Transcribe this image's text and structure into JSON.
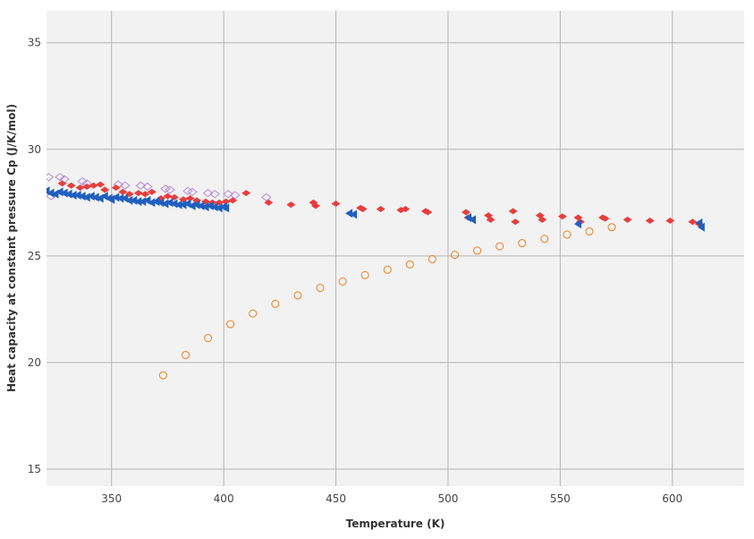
{
  "chart_data": {
    "type": "scatter",
    "title": "",
    "xlabel": "Temperature (K)",
    "ylabel": "Heat capacity at constant pressure Cp (J/K/mol)",
    "xlim": [
      321,
      632
    ],
    "ylim": [
      14.2,
      36.5
    ],
    "xticks": [
      350,
      400,
      450,
      500,
      550,
      600
    ],
    "yticks": [
      15,
      20,
      25,
      30,
      35
    ],
    "grid": true,
    "legend": "none",
    "colors": {
      "plot_background": "#f2f2f2",
      "grid": "#b4b4b4",
      "series_red": "#e83d3d",
      "series_blue": "#1f5fbf",
      "series_purple": "#b98ad8",
      "series_orange": "#ee7d21"
    },
    "series": [
      {
        "marker": "open-diamond",
        "color": "#b98ad8",
        "x": [
          322,
          323,
          327,
          329,
          337,
          339,
          353,
          356,
          363,
          366,
          374,
          376,
          384,
          386,
          393,
          396,
          402,
          405,
          419
        ],
        "y": [
          28.7,
          27.8,
          28.7,
          28.6,
          28.5,
          28.4,
          28.35,
          28.3,
          28.3,
          28.25,
          28.15,
          28.1,
          28.05,
          28.0,
          27.95,
          27.9,
          27.9,
          27.85,
          27.75
        ]
      },
      {
        "marker": "filled-diamond",
        "color": "#e83d3d",
        "x": [
          328,
          332,
          336,
          339,
          342,
          345,
          347,
          352,
          355,
          358,
          362,
          365,
          368,
          372,
          375,
          378,
          382,
          385,
          388,
          392,
          395,
          398,
          401,
          404,
          410,
          420,
          430,
          440,
          441,
          450,
          461,
          462,
          470,
          479,
          481,
          490,
          491,
          508,
          509,
          518,
          519,
          529,
          530,
          541,
          542,
          551,
          558,
          559,
          569,
          570,
          580,
          590,
          599,
          609,
          612
        ],
        "y": [
          28.4,
          28.3,
          28.2,
          28.25,
          28.3,
          28.35,
          28.1,
          28.2,
          28.0,
          27.9,
          27.95,
          27.9,
          28.0,
          27.7,
          27.8,
          27.75,
          27.65,
          27.7,
          27.6,
          27.55,
          27.5,
          27.5,
          27.55,
          27.6,
          27.95,
          27.5,
          27.4,
          27.5,
          27.35,
          27.45,
          27.25,
          27.2,
          27.2,
          27.15,
          27.2,
          27.1,
          27.05,
          27.05,
          26.8,
          26.9,
          26.7,
          27.1,
          26.6,
          26.9,
          26.7,
          26.85,
          26.8,
          26.6,
          26.8,
          26.75,
          26.7,
          26.65,
          26.65,
          26.6,
          26.5
        ]
      },
      {
        "marker": "filled-triangle-left",
        "color": "#1f5fbf",
        "x": [
          321,
          323,
          325,
          327,
          329,
          331,
          333,
          335,
          337,
          339,
          341,
          343,
          345,
          347,
          349,
          350,
          352,
          354,
          356,
          358,
          360,
          362,
          364,
          366,
          368,
          370,
          372,
          374,
          376,
          378,
          380,
          382,
          384,
          386,
          388,
          390,
          392,
          394,
          396,
          398,
          400,
          401,
          456,
          458,
          509,
          511,
          558,
          612,
          613
        ],
        "y": [
          28.05,
          27.95,
          27.9,
          28.0,
          27.95,
          27.9,
          27.85,
          27.85,
          27.8,
          27.75,
          27.8,
          27.75,
          27.7,
          27.8,
          27.7,
          27.65,
          27.75,
          27.7,
          27.7,
          27.6,
          27.6,
          27.55,
          27.55,
          27.6,
          27.5,
          27.55,
          27.5,
          27.45,
          27.5,
          27.45,
          27.4,
          27.4,
          27.45,
          27.35,
          27.4,
          27.35,
          27.3,
          27.35,
          27.3,
          27.25,
          27.3,
          27.25,
          27.0,
          26.95,
          26.8,
          26.7,
          26.5,
          26.55,
          26.35
        ]
      },
      {
        "marker": "open-circle",
        "color": "#ee7d21",
        "x": [
          373,
          383,
          393,
          403,
          413,
          423,
          433,
          443,
          453,
          463,
          473,
          483,
          493,
          503,
          513,
          523,
          533,
          543,
          553,
          563,
          573
        ],
        "y": [
          19.4,
          20.35,
          21.15,
          21.8,
          22.3,
          22.75,
          23.15,
          23.5,
          23.8,
          24.1,
          24.35,
          24.6,
          24.85,
          25.05,
          25.25,
          25.45,
          25.6,
          25.8,
          26.0,
          26.15,
          26.35
        ]
      }
    ]
  }
}
